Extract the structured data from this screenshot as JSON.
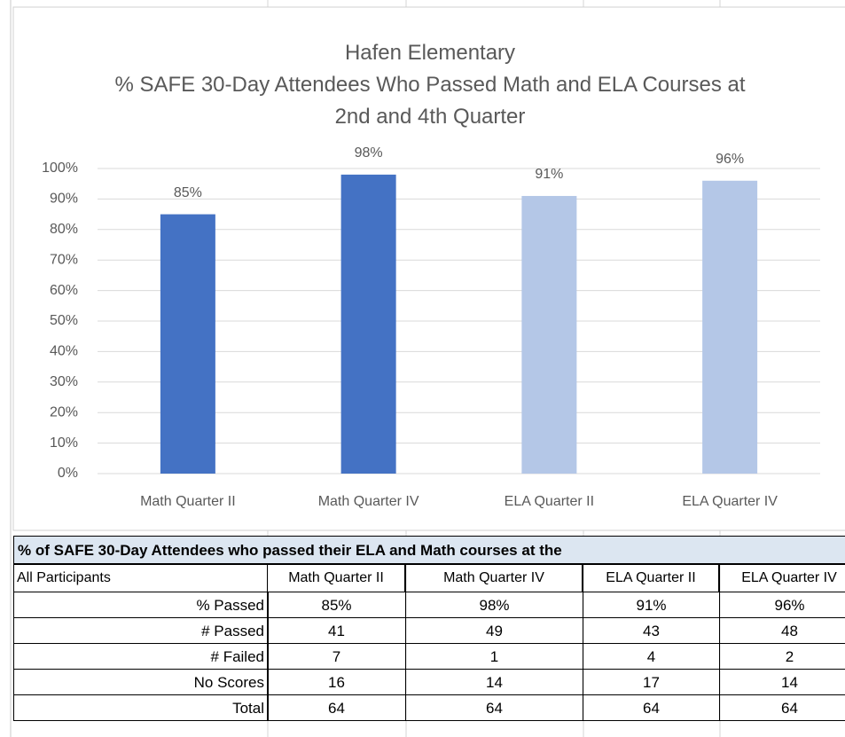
{
  "chart_data": {
    "type": "bar",
    "title": "Hafen Elementary",
    "subtitle": "% SAFE 30-Day Attendees Who Passed Math and ELA Courses at 2nd and 4th Quarter",
    "categories": [
      "Math Quarter II",
      "Math Quarter IV",
      "ELA Quarter II",
      "ELA Quarter IV"
    ],
    "values": [
      85,
      98,
      91,
      96
    ],
    "value_labels": [
      "85%",
      "98%",
      "91%",
      "96%"
    ],
    "colors": [
      "#4472c4",
      "#4472c4",
      "#b4c7e7",
      "#b4c7e7"
    ],
    "ylim": [
      0,
      100
    ],
    "yticks": [
      {
        "value": 0,
        "label": "0%"
      },
      {
        "value": 10,
        "label": "10%"
      },
      {
        "value": 20,
        "label": "20%"
      },
      {
        "value": 30,
        "label": "30%"
      },
      {
        "value": 40,
        "label": "40%"
      },
      {
        "value": 50,
        "label": "50%"
      },
      {
        "value": 60,
        "label": "60%"
      },
      {
        "value": 70,
        "label": "70%"
      },
      {
        "value": 80,
        "label": "80%"
      },
      {
        "value": 90,
        "label": "90%"
      },
      {
        "value": 100,
        "label": "100%"
      }
    ],
    "grid": true
  },
  "table": {
    "title": "% of SAFE 30-Day Attendees who passed their ELA and Math courses at the",
    "header": [
      "All Participants",
      "Math Quarter II",
      "Math Quarter IV",
      "ELA Quarter II",
      "ELA Quarter IV"
    ],
    "rows": [
      [
        "% Passed",
        "85%",
        "98%",
        "91%",
        "96%"
      ],
      [
        "# Passed",
        41,
        49,
        43,
        48
      ],
      [
        "# Failed",
        7,
        1,
        4,
        2
      ],
      [
        "No Scores",
        16,
        14,
        17,
        14
      ],
      [
        "Total",
        64,
        64,
        64,
        64
      ]
    ]
  }
}
